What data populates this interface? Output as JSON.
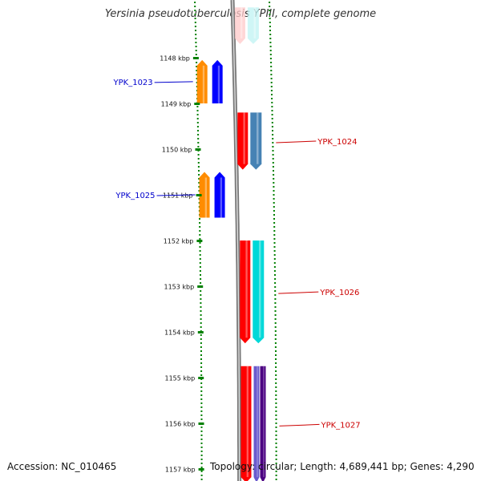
{
  "title": "Yersinia pseudotuberculosis YPIII, complete genome",
  "footer": {
    "accession": "Accession: NC_010465",
    "summary": "Topology: circular; Length: 4,689,441 bp; Genes: 4,290"
  },
  "ticks": [
    {
      "label": "1148 kbp",
      "kbp": 1148
    },
    {
      "label": "1149 kbp",
      "kbp": 1149
    },
    {
      "label": "1150 kbp",
      "kbp": 1150
    },
    {
      "label": "1151 kbp",
      "kbp": 1151
    },
    {
      "label": "1152 kbp",
      "kbp": 1152
    },
    {
      "label": "1153 kbp",
      "kbp": 1153
    },
    {
      "label": "1154 kbp",
      "kbp": 1154
    },
    {
      "label": "1155 kbp",
      "kbp": 1155
    },
    {
      "label": "1156 kbp",
      "kbp": 1156
    },
    {
      "label": "1157 kbp",
      "kbp": 1157
    }
  ],
  "genes": [
    {
      "name": "",
      "strand": "plus",
      "start_kbp": 1146.9,
      "end_kbp": 1147.7,
      "gene_color": "#ffc8c8",
      "cds_color": "#bff3f3",
      "faded": true
    },
    {
      "name": "YPK_1023",
      "strand": "minus",
      "start_kbp": 1148.05,
      "end_kbp": 1149.0,
      "gene_color": "#ff8c00",
      "cds_color": "#0000ff"
    },
    {
      "name": "YPK_1024",
      "strand": "plus",
      "start_kbp": 1149.2,
      "end_kbp": 1150.45,
      "gene_color": "#ff0000",
      "cds_color": "#4682b4"
    },
    {
      "name": "YPK_1025",
      "strand": "minus",
      "start_kbp": 1150.5,
      "end_kbp": 1151.5,
      "gene_color": "#ff8c00",
      "cds_color": "#0000ff"
    },
    {
      "name": "YPK_1026",
      "strand": "plus",
      "start_kbp": 1152.0,
      "end_kbp": 1154.25,
      "gene_color": "#ff0000",
      "cds_color": "#00d8d8"
    },
    {
      "name": "YPK_1027",
      "strand": "plus",
      "start_kbp": 1154.75,
      "end_kbp": 1157.3,
      "gene_color": "#ff0000",
      "cds_color": "#4b0082",
      "cds_color2": "#6a5acd"
    }
  ],
  "colors": {
    "minus_label": "#0000cc",
    "plus_label": "#cc0000",
    "dotted_guides": "#008000",
    "backbone": "#888888"
  }
}
